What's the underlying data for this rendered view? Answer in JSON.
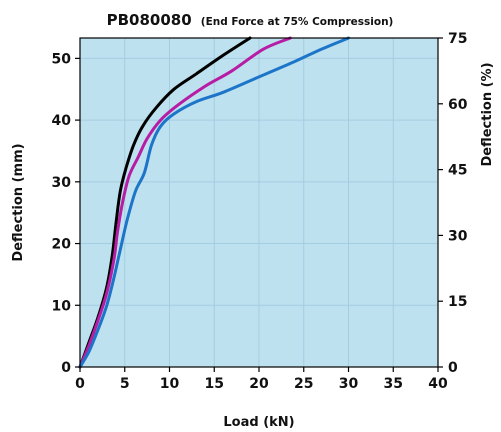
{
  "chart_data": {
    "type": "line",
    "title": "PB080080",
    "subtitle": "(End Force at 75% Compression)",
    "xlabel": "Load (kN)",
    "ylabel": "Deflection (mm)",
    "y2label": "Deflection (%)",
    "xlim": [
      0,
      40
    ],
    "ylim": [
      0,
      53.3
    ],
    "y2lim": [
      0,
      75
    ],
    "xticks": [
      0,
      5,
      10,
      15,
      20,
      25,
      30,
      35,
      40
    ],
    "yticks": [
      0,
      10,
      20,
      30,
      40,
      50
    ],
    "y2ticks": [
      0,
      15,
      30,
      45,
      60,
      75
    ],
    "grid": true,
    "background_color": "#bde1ef",
    "grid_color": "#a5cde0",
    "series": [
      {
        "color": "#000000",
        "x": [
          0,
          1.0,
          2.0,
          3.0,
          3.6,
          4.0,
          4.5,
          5.2,
          6.0,
          7.0,
          8.5,
          10.5,
          13.0,
          16.0,
          19.0
        ],
        "y": [
          0,
          4.0,
          8.0,
          13.0,
          18.0,
          23.0,
          28.5,
          32.5,
          36.0,
          39.0,
          42.0,
          45.0,
          47.5,
          50.5,
          53.3
        ]
      },
      {
        "color": "#b71ca5",
        "x": [
          0,
          1.0,
          2.0,
          3.0,
          3.8,
          4.2,
          4.8,
          5.5,
          6.5,
          7.5,
          9.0,
          11.0,
          14.0,
          17.0,
          20.5,
          23.5
        ],
        "y": [
          0,
          3.5,
          7.5,
          12.0,
          17.5,
          22.0,
          27.0,
          31.0,
          34.0,
          37.0,
          40.0,
          42.5,
          45.5,
          48.0,
          51.5,
          53.3
        ]
      },
      {
        "color": "#1c75c8",
        "x": [
          0,
          1.0,
          2.0,
          3.0,
          3.8,
          4.5,
          5.3,
          6.2,
          7.2,
          8.0,
          9.0,
          10.5,
          13.0,
          16.0,
          20.0,
          24.0,
          27.0,
          30.0
        ],
        "y": [
          0,
          2.5,
          6.0,
          10.0,
          14.5,
          19.0,
          24.0,
          28.5,
          31.5,
          36.0,
          39.0,
          41.0,
          43.0,
          44.5,
          47.0,
          49.5,
          51.5,
          53.3
        ]
      }
    ]
  }
}
